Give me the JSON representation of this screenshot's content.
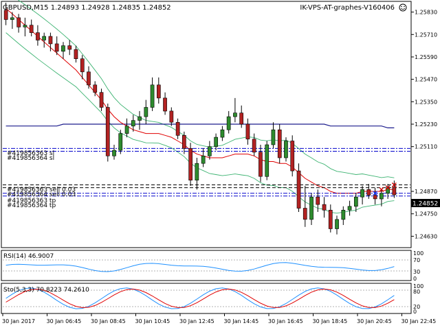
{
  "header": {
    "symbol_info": "GBPUSD,M15  1.24893 1.24928 1.24835 1.24852",
    "expert_name": "IK-VPS-AT-graphes-V160406",
    "smiley_icon": "smiley-face-icon"
  },
  "colors": {
    "background": "#ffffff",
    "frame": "#000000",
    "bull_candle": "#2e8b2e",
    "bear_candle": "#b22222",
    "candle_wick": "#000000",
    "ma_red": "#e00000",
    "ma_blue": "#1a1a8c",
    "bollinger": "#3cb371",
    "level_line_blue": "#0000cc",
    "level_line_black": "#000000",
    "rsi_line": "#1e90ff",
    "sto_main": "#1e90ff",
    "sto_signal": "#e00000",
    "price_tag_bg": "#000000",
    "price_tag_text": "#ffffff"
  },
  "price_axis": {
    "ticks": [
      "1.25830",
      "1.25710",
      "1.25590",
      "1.25470",
      "1.25350",
      "1.25230",
      "1.25110",
      "1.24870",
      "1.24750",
      "1.24630"
    ],
    "current_price": "1.24852"
  },
  "level_labels": [
    "#419856363 sl",
    "#419856364 sl",
    "#419856363 sell 0.03",
    "#419856364 sell 0.03",
    "#419856363 tp",
    "#419856364 tp"
  ],
  "rsi": {
    "label": "RSI(14) 46.9007",
    "ticks": [
      "100",
      "70",
      "30",
      "0"
    ]
  },
  "stochastic": {
    "label": "Sto(5,3,3) 70.8223 74.2610",
    "ticks": [
      "100",
      "80",
      "20",
      "0"
    ]
  },
  "time_axis": {
    "labels": [
      "30 Jan 2017",
      "30 Jan 06:45",
      "30 Jan 08:45",
      "30 Jan 10:45",
      "30 Jan 12:45",
      "30 Jan 14:45",
      "30 Jan 16:45",
      "30 Jan 18:45",
      "30 Jan 20:45",
      "30 Jan 22:45"
    ]
  },
  "chart_data": {
    "type": "candlestick",
    "symbol": "GBPUSD",
    "timeframe": "M15",
    "ylim": [
      1.2458,
      1.2588
    ],
    "candles": [
      [
        1.2584,
        1.2588,
        1.2576,
        1.2579
      ],
      [
        1.2579,
        1.2583,
        1.2574,
        1.258
      ],
      [
        1.258,
        1.2582,
        1.2572,
        1.2575
      ],
      [
        1.2575,
        1.258,
        1.257,
        1.2576
      ],
      [
        1.2576,
        1.2579,
        1.257,
        1.2572
      ],
      [
        1.2572,
        1.2576,
        1.2565,
        1.2568
      ],
      [
        1.2568,
        1.2572,
        1.2564,
        1.257
      ],
      [
        1.257,
        1.2572,
        1.2562,
        1.2566
      ],
      [
        1.2566,
        1.257,
        1.256,
        1.2562
      ],
      [
        1.2562,
        1.2567,
        1.2558,
        1.2565
      ],
      [
        1.2565,
        1.2568,
        1.256,
        1.2563
      ],
      [
        1.2563,
        1.2565,
        1.2556,
        1.2558
      ],
      [
        1.2558,
        1.256,
        1.2547,
        1.2551
      ],
      [
        1.2551,
        1.2554,
        1.2542,
        1.2544
      ],
      [
        1.2544,
        1.2546,
        1.2538,
        1.254
      ],
      [
        1.254,
        1.2542,
        1.253,
        1.2532
      ],
      [
        1.2532,
        1.2534,
        1.2503,
        1.2506
      ],
      [
        1.2506,
        1.2512,
        1.2504,
        1.2509
      ],
      [
        1.2509,
        1.252,
        1.2507,
        1.2518
      ],
      [
        1.2518,
        1.2526,
        1.2516,
        1.2522
      ],
      [
        1.2522,
        1.2528,
        1.2519,
        1.2525
      ],
      [
        1.2525,
        1.253,
        1.252,
        1.2527
      ],
      [
        1.2527,
        1.2536,
        1.2523,
        1.2532
      ],
      [
        1.2532,
        1.2548,
        1.253,
        1.2544
      ],
      [
        1.2544,
        1.2548,
        1.2534,
        1.2537
      ],
      [
        1.2537,
        1.254,
        1.2528,
        1.253
      ],
      [
        1.253,
        1.2532,
        1.2522,
        1.2524
      ],
      [
        1.2524,
        1.2526,
        1.2515,
        1.2517
      ],
      [
        1.2517,
        1.2519,
        1.2507,
        1.251
      ],
      [
        1.251,
        1.2513,
        1.249,
        1.2493
      ],
      [
        1.2493,
        1.2505,
        1.2488,
        1.2502
      ],
      [
        1.2502,
        1.251,
        1.25,
        1.2506
      ],
      [
        1.2506,
        1.2514,
        1.2504,
        1.2511
      ],
      [
        1.2511,
        1.2518,
        1.2509,
        1.2516
      ],
      [
        1.2516,
        1.2522,
        1.2514,
        1.252
      ],
      [
        1.252,
        1.253,
        1.2518,
        1.2527
      ],
      [
        1.2527,
        1.2537,
        1.2524,
        1.2529
      ],
      [
        1.2529,
        1.2533,
        1.2521,
        1.2523
      ],
      [
        1.2523,
        1.2526,
        1.2512,
        1.2515
      ],
      [
        1.2515,
        1.2518,
        1.2506,
        1.2508
      ],
      [
        1.2508,
        1.2512,
        1.2492,
        1.2495
      ],
      [
        1.2495,
        1.2514,
        1.2493,
        1.2512
      ],
      [
        1.2512,
        1.2524,
        1.251,
        1.252
      ],
      [
        1.252,
        1.2523,
        1.2502,
        1.2505
      ],
      [
        1.2505,
        1.2516,
        1.2503,
        1.2514
      ],
      [
        1.2514,
        1.2517,
        1.2495,
        1.2498
      ],
      [
        1.2498,
        1.2502,
        1.2476,
        1.2478
      ],
      [
        1.2478,
        1.249,
        1.2468,
        1.2472
      ],
      [
        1.2472,
        1.2486,
        1.2469,
        1.2484
      ],
      [
        1.2484,
        1.2488,
        1.2476,
        1.248
      ],
      [
        1.248,
        1.2484,
        1.2473,
        1.2477
      ],
      [
        1.2477,
        1.248,
        1.2465,
        1.2467
      ],
      [
        1.2467,
        1.2474,
        1.2464,
        1.2472
      ],
      [
        1.2472,
        1.2479,
        1.2469,
        1.2477
      ],
      [
        1.2477,
        1.2482,
        1.2474,
        1.2479
      ],
      [
        1.2479,
        1.2486,
        1.2476,
        1.2484
      ],
      [
        1.2484,
        1.249,
        1.248,
        1.2488
      ],
      [
        1.2488,
        1.2491,
        1.2483,
        1.2485
      ],
      [
        1.2485,
        1.2489,
        1.248,
        1.2483
      ],
      [
        1.2483,
        1.2488,
        1.2479,
        1.2486
      ],
      [
        1.2486,
        1.2491,
        1.2483,
        1.2489
      ],
      [
        1.24893,
        1.24928,
        1.24835,
        1.24852
      ]
    ],
    "indicators": {
      "ma_red": [
        1.2585,
        1.2582,
        1.2579,
        1.2576,
        1.2573,
        1.257,
        1.2567,
        1.2564,
        1.2561,
        1.2558,
        1.2555,
        1.2552,
        1.2548,
        1.2544,
        1.254,
        1.2536,
        1.2531,
        1.2527,
        1.2524,
        1.2522,
        1.252,
        1.2519,
        1.2518,
        1.2518,
        1.2518,
        1.2517,
        1.2516,
        1.2514,
        1.2512,
        1.2509,
        1.2507,
        1.2506,
        1.2505,
        1.2505,
        1.2505,
        1.2506,
        1.2507,
        1.2507,
        1.2507,
        1.2506,
        1.2504,
        1.2503,
        1.2503,
        1.2502,
        1.2502,
        1.25,
        1.2497,
        1.2494,
        1.2492,
        1.249,
        1.2489,
        1.2487,
        1.2486,
        1.2486,
        1.2486,
        1.2486,
        1.2487,
        1.2487,
        1.2487,
        1.2487,
        1.2488,
        1.2488
      ],
      "ma_blue": [
        1.2522,
        1.2522,
        1.2522,
        1.2522,
        1.2522,
        1.2522,
        1.2522,
        1.2522,
        1.2522,
        1.2523,
        1.2523,
        1.2523,
        1.2523,
        1.2523,
        1.2523,
        1.2523,
        1.2523,
        1.2523,
        1.2523,
        1.2523,
        1.2523,
        1.2523,
        1.2523,
        1.2523,
        1.2523,
        1.2523,
        1.2523,
        1.2523,
        1.2523,
        1.2523,
        1.2523,
        1.2523,
        1.2523,
        1.2523,
        1.2523,
        1.2523,
        1.2523,
        1.2523,
        1.2523,
        1.2523,
        1.2523,
        1.2523,
        1.2523,
        1.2523,
        1.2523,
        1.2523,
        1.2523,
        1.2523,
        1.2523,
        1.2523,
        1.2523,
        1.2522,
        1.2522,
        1.2522,
        1.2522,
        1.2522,
        1.2522,
        1.2522,
        1.2522,
        1.2522,
        1.2521,
        1.2521
      ]
    },
    "level_prices": [
      1.251,
      1.25085,
      1.24905,
      1.2489,
      1.2486,
      1.24845
    ]
  }
}
